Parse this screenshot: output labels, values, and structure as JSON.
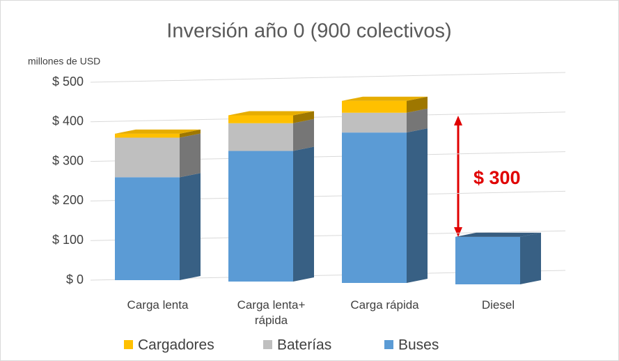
{
  "chart_data": {
    "type": "bar3d_stacked",
    "title": "Inversión año 0 (900 colectivos)",
    "y_axis_label": "millones de USD",
    "categories": [
      "Carga lenta",
      "Carga lenta+ rápida",
      "Carga rápida",
      "Diesel"
    ],
    "series": [
      {
        "name": "Cargadores",
        "color": "#ffc000",
        "values": [
          10,
          20,
          30,
          0
        ]
      },
      {
        "name": "Baterías",
        "color": "#bfbfbf",
        "values": [
          100,
          70,
          50,
          0
        ]
      },
      {
        "name": "Buses",
        "color": "#5b9bd5",
        "values": [
          260,
          330,
          380,
          120
        ]
      }
    ],
    "stack_order": "bottom_is_last",
    "ylim": [
      0,
      500
    ],
    "yticks": [
      {
        "value": 0,
        "label": "$ 0"
      },
      {
        "value": 100,
        "label": "$ 100"
      },
      {
        "value": 200,
        "label": "$ 200"
      },
      {
        "value": 300,
        "label": "$ 300"
      },
      {
        "value": 400,
        "label": "$ 400"
      },
      {
        "value": 500,
        "label": "$ 500"
      }
    ],
    "grid": true,
    "legend": "bottom",
    "annotation": "$ 300"
  }
}
